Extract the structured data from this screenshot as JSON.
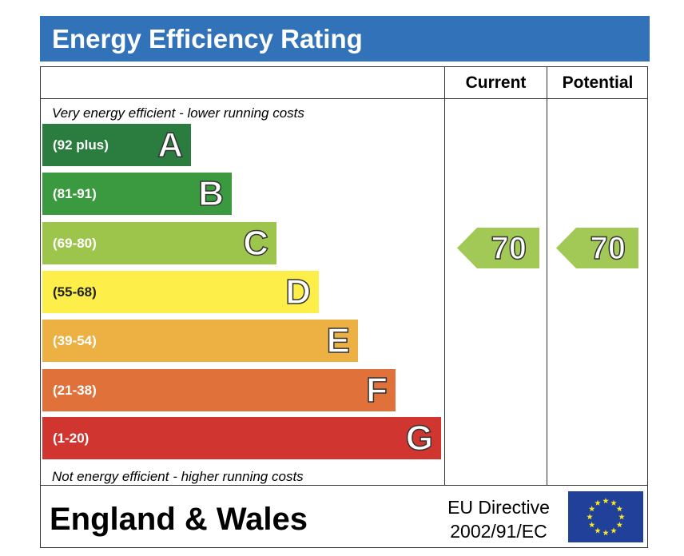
{
  "title": "Energy Efficiency Rating",
  "columns": {
    "current": "Current",
    "potential": "Potential"
  },
  "notes": {
    "top": "Very energy efficient - lower running costs",
    "bottom": "Not energy efficient - higher running costs"
  },
  "chart_data": {
    "type": "bar",
    "bands": [
      {
        "letter": "A",
        "range": "(92 plus)",
        "color": "#2a7d3e"
      },
      {
        "letter": "B",
        "range": "(81-91)",
        "color": "#3b9a40"
      },
      {
        "letter": "C",
        "range": "(69-80)",
        "color": "#9dc54c"
      },
      {
        "letter": "D",
        "range": "(55-68)",
        "color": "#fdee4a"
      },
      {
        "letter": "E",
        "range": "(39-54)",
        "color": "#edb043"
      },
      {
        "letter": "F",
        "range": "(21-38)",
        "color": "#e1713a"
      },
      {
        "letter": "G",
        "range": "(1-20)",
        "color": "#d03530"
      }
    ],
    "current": {
      "value": "70",
      "band": "C",
      "color": "#a2c855"
    },
    "potential": {
      "value": "70",
      "band": "C",
      "color": "#a2c855"
    }
  },
  "footer": {
    "region": "England & Wales",
    "directive_line1": "EU Directive",
    "directive_line2": "2002/91/EC",
    "flag": "eu-flag-icon"
  }
}
